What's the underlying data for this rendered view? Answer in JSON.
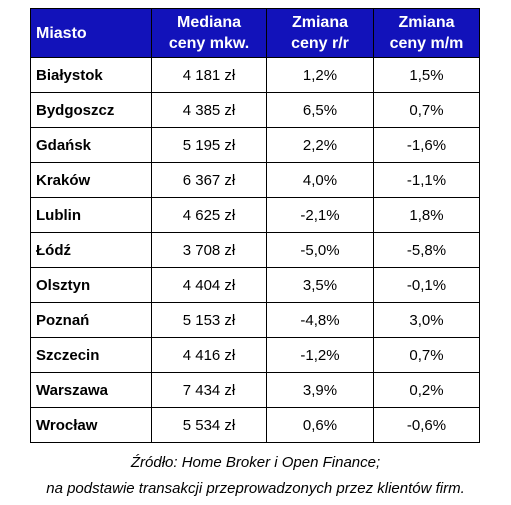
{
  "chart_data": {
    "type": "table",
    "columns": [
      "Miasto",
      "Mediana ceny mkw.",
      "Zmiana ceny r/r",
      "Zmiana ceny m/m"
    ],
    "header_lines": [
      [
        "Miasto"
      ],
      [
        "Mediana",
        "ceny mkw."
      ],
      [
        "Zmiana",
        "ceny r/r"
      ],
      [
        "Zmiana",
        "ceny m/m"
      ]
    ],
    "rows": [
      {
        "city": "Białystok",
        "median": "4 181 zł",
        "yoy": "1,2%",
        "mom": "1,5%"
      },
      {
        "city": "Bydgoszcz",
        "median": "4 385 zł",
        "yoy": "6,5%",
        "mom": "0,7%"
      },
      {
        "city": "Gdańsk",
        "median": "5 195 zł",
        "yoy": "2,2%",
        "mom": "-1,6%"
      },
      {
        "city": "Kraków",
        "median": "6 367 zł",
        "yoy": "4,0%",
        "mom": "-1,1%"
      },
      {
        "city": "Lublin",
        "median": "4 625 zł",
        "yoy": "-2,1%",
        "mom": "1,8%"
      },
      {
        "city": "Łódź",
        "median": "3 708 zł",
        "yoy": "-5,0%",
        "mom": "-5,8%"
      },
      {
        "city": "Olsztyn",
        "median": "4 404 zł",
        "yoy": "3,5%",
        "mom": "-0,1%"
      },
      {
        "city": "Poznań",
        "median": "5 153 zł",
        "yoy": "-4,8%",
        "mom": "3,0%"
      },
      {
        "city": "Szczecin",
        "median": "4 416 zł",
        "yoy": "-1,2%",
        "mom": "0,7%"
      },
      {
        "city": "Warszawa",
        "median": "7 434 zł",
        "yoy": "3,9%",
        "mom": "0,2%"
      },
      {
        "city": "Wrocław",
        "median": "5 534 zł",
        "yoy": "0,6%",
        "mom": "-0,6%"
      }
    ],
    "source_lines": [
      "Źródło: Home Broker i Open Finance;",
      "na podstawie transakcji przeprowadzonych przez klientów firm."
    ],
    "header_bg": "#1212ba",
    "header_text_color": "#ffffff",
    "border_color": "#000000"
  }
}
